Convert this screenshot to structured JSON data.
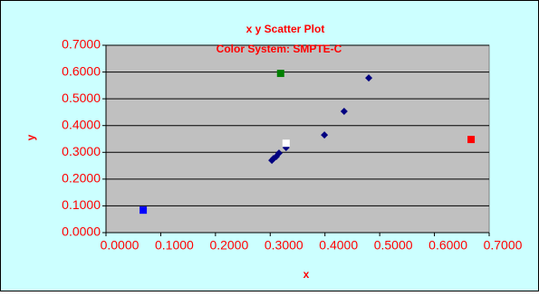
{
  "chart_data": {
    "type": "scatter",
    "title": "x y Scatter Plot",
    "subtitle": "Color System: SMPTE-C",
    "x_label": "x",
    "y_label": "y",
    "xlim": [
      0,
      0.7
    ],
    "ylim": [
      0,
      0.7
    ],
    "xticks": [
      {
        "value": 0,
        "label": "0.0000"
      },
      {
        "value": 0.1,
        "label": "0.1000"
      },
      {
        "value": 0.2,
        "label": "0.2000"
      },
      {
        "value": 0.3,
        "label": "0.3000"
      },
      {
        "value": 0.4,
        "label": "0.4000"
      },
      {
        "value": 0.5,
        "label": "0.5000"
      },
      {
        "value": 0.6,
        "label": "0.6000"
      },
      {
        "value": 0.7,
        "label": "0.7000"
      }
    ],
    "yticks": [
      {
        "value": 0,
        "label": "0.0000"
      },
      {
        "value": 0.1,
        "label": "0.1000"
      },
      {
        "value": 0.2,
        "label": "0.2000"
      },
      {
        "value": 0.3,
        "label": "0.3000"
      },
      {
        "value": 0.4,
        "label": "0.4000"
      },
      {
        "value": 0.5,
        "label": "0.5000"
      },
      {
        "value": 0.6,
        "label": "0.6000"
      },
      {
        "value": 0.7,
        "label": "0.7000"
      }
    ],
    "grid": true,
    "series": [
      {
        "color": "#000080",
        "marker": "diamond",
        "x": [
          0.48,
          0.435,
          0.399,
          0.329,
          0.316,
          0.311,
          0.306,
          0.303
        ],
        "values": [
          0.578,
          0.453,
          0.365,
          0.318,
          0.297,
          0.284,
          0.277,
          0.27
        ]
      },
      {
        "color": "#ff0000",
        "marker": "square",
        "x": [
          0.667
        ],
        "values": [
          0.348
        ]
      },
      {
        "color": "#008000",
        "marker": "square",
        "x": [
          0.319
        ],
        "values": [
          0.595
        ]
      },
      {
        "color": "#0000ff",
        "marker": "square",
        "x": [
          0.068
        ],
        "values": [
          0.084
        ]
      },
      {
        "color": "#ffffff",
        "marker": "square",
        "x": [
          0.329
        ],
        "values": [
          0.334
        ]
      }
    ]
  }
}
